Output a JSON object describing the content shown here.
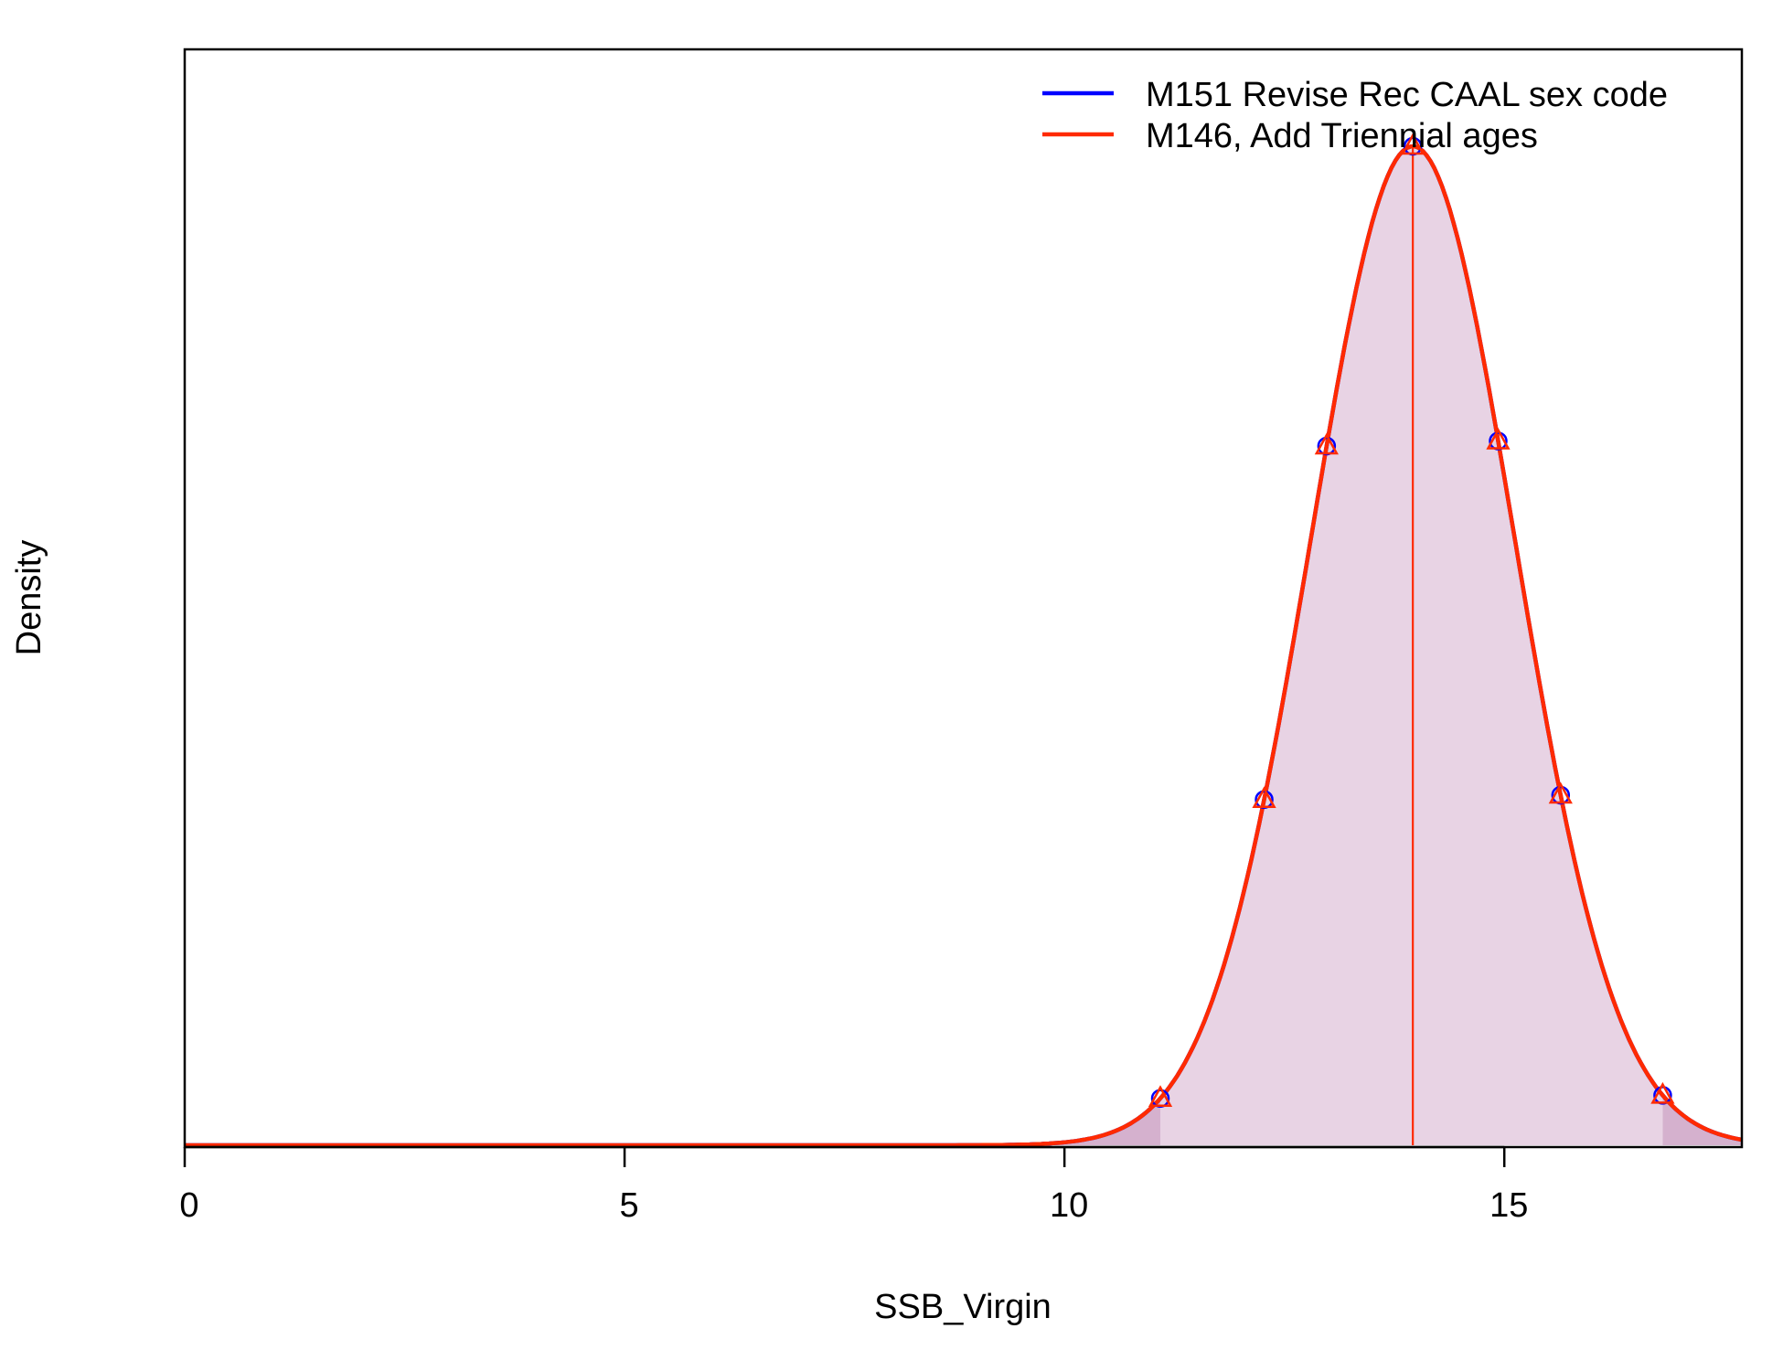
{
  "chart_data": {
    "type": "line",
    "title": "",
    "xlabel": "SSB_Virgin",
    "ylabel": "Density",
    "xlim": [
      0,
      17.7
    ],
    "x_ticks": [
      "0",
      "5",
      "10",
      "15"
    ],
    "x_tick_values": [
      0,
      5,
      10,
      15
    ],
    "y_ticks_shown": false,
    "grid": false,
    "legend_position": "top-right",
    "series": [
      {
        "name": "M151 Revise Rec CAAL sex code",
        "color": "#0000ff",
        "mean": 13.96,
        "sd": 1.16
      },
      {
        "name": "M146, Add Triennial ages",
        "color": "#ff2a00",
        "mean": 13.96,
        "sd": 1.16
      }
    ],
    "median_line": 13.96,
    "interval_95": [
      11.09,
      16.8
    ],
    "quantile_markers_x": [
      11.09,
      12.27,
      12.98,
      13.96,
      14.93,
      15.64,
      16.8
    ],
    "fill_color": "#e8d3e4",
    "tail_fill_color": "#d5b1ce",
    "marker_symbol": "triangle"
  }
}
